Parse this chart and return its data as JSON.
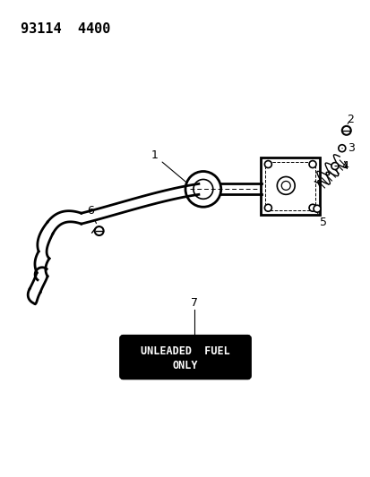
{
  "title_code": "93114  4400",
  "background_color": "#ffffff",
  "line_color": "#000000",
  "figsize": [
    4.14,
    5.33
  ],
  "dpi": 100
}
